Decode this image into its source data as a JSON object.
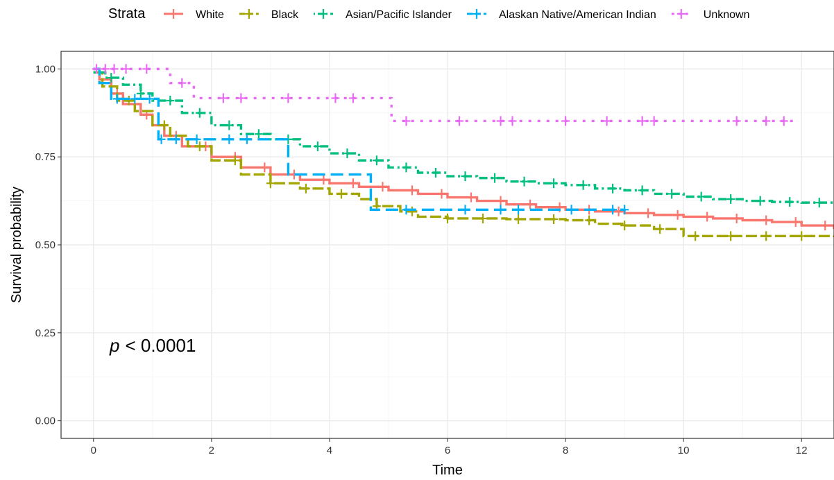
{
  "chart_data": {
    "type": "line",
    "subtype": "kaplan-meier step",
    "xlabel": "Time",
    "ylabel": "Survival probability",
    "xlim": [
      -0.55,
      12.55
    ],
    "ylim": [
      -0.05,
      1.05
    ],
    "x_ticks": [
      0,
      2,
      4,
      6,
      8,
      10,
      12
    ],
    "y_ticks": [
      0.0,
      0.25,
      0.5,
      0.75,
      1.0
    ],
    "y_tick_labels": [
      "0.00",
      "0.25",
      "0.50",
      "0.75",
      "1.00"
    ],
    "grid": true,
    "legend": {
      "title": "Strata",
      "position": "top"
    },
    "annotation": {
      "p_symbol": "p",
      "text": "< 0.0001"
    },
    "series": [
      {
        "name": "White",
        "color": "#F8766D",
        "linestyle": "solid",
        "x": [
          0,
          0.1,
          0.3,
          0.5,
          0.8,
          1.0,
          1.2,
          1.5,
          2.0,
          2.5,
          3.0,
          3.5,
          4.0,
          4.5,
          5.0,
          5.5,
          6.0,
          6.5,
          7.0,
          7.5,
          8.0,
          8.5,
          9.0,
          9.5,
          10.0,
          10.5,
          11.0,
          11.5,
          12.0,
          12.55
        ],
        "y": [
          1.0,
          0.97,
          0.93,
          0.9,
          0.87,
          0.84,
          0.81,
          0.78,
          0.75,
          0.72,
          0.7,
          0.685,
          0.675,
          0.665,
          0.655,
          0.645,
          0.635,
          0.625,
          0.615,
          0.607,
          0.6,
          0.595,
          0.59,
          0.585,
          0.58,
          0.575,
          0.57,
          0.565,
          0.555,
          0.545
        ],
        "censor_x": [
          0.4,
          0.9,
          1.4,
          1.9,
          2.4,
          2.9,
          3.4,
          3.9,
          4.4,
          4.9,
          5.4,
          5.9,
          6.4,
          6.9,
          7.4,
          7.9,
          8.4,
          8.9,
          9.4,
          9.9,
          10.4,
          10.9,
          11.4,
          11.9,
          12.4
        ]
      },
      {
        "name": "Black",
        "color": "#A3A500",
        "linestyle": "longdash",
        "x": [
          0,
          0.15,
          0.4,
          0.7,
          1.0,
          1.3,
          1.6,
          2.0,
          2.5,
          3.0,
          3.5,
          4.0,
          4.5,
          4.8,
          5.2,
          5.5,
          6.0,
          7.0,
          8.0,
          8.5,
          9.0,
          9.5,
          10.0,
          10.5,
          11.0,
          12.55
        ],
        "y": [
          0.99,
          0.95,
          0.91,
          0.88,
          0.84,
          0.81,
          0.78,
          0.74,
          0.7,
          0.675,
          0.66,
          0.645,
          0.63,
          0.61,
          0.595,
          0.58,
          0.575,
          0.573,
          0.57,
          0.56,
          0.555,
          0.545,
          0.525,
          0.525,
          0.525,
          0.522
        ],
        "censor_x": [
          0.6,
          1.2,
          1.8,
          2.4,
          3.0,
          3.6,
          4.2,
          4.8,
          5.4,
          6.0,
          6.6,
          7.2,
          7.8,
          8.4,
          9.0,
          9.6,
          10.2,
          10.8,
          11.4,
          12.0
        ]
      },
      {
        "name": "Asian/Pacific Islander",
        "color": "#00BF7D",
        "linestyle": "dotdash",
        "x": [
          0,
          0.2,
          0.5,
          0.8,
          1.0,
          1.5,
          2.0,
          2.5,
          3.0,
          3.5,
          4.0,
          4.5,
          5.0,
          5.5,
          6.0,
          6.5,
          7.0,
          7.5,
          8.0,
          8.5,
          9.0,
          9.5,
          10.0,
          10.5,
          11.0,
          11.5,
          12.0,
          12.55
        ],
        "y": [
          0.99,
          0.975,
          0.955,
          0.93,
          0.91,
          0.875,
          0.84,
          0.815,
          0.8,
          0.78,
          0.76,
          0.74,
          0.72,
          0.705,
          0.695,
          0.69,
          0.68,
          0.675,
          0.67,
          0.66,
          0.655,
          0.645,
          0.637,
          0.63,
          0.625,
          0.622,
          0.62,
          0.618
        ],
        "censor_x": [
          0.3,
          0.8,
          1.3,
          1.8,
          2.3,
          2.8,
          3.3,
          3.8,
          4.3,
          4.8,
          5.3,
          5.8,
          6.3,
          6.8,
          7.3,
          7.8,
          8.3,
          8.8,
          9.3,
          9.8,
          10.3,
          10.8,
          11.3,
          11.8,
          12.3
        ]
      },
      {
        "name": "Alaskan Native/American Indian",
        "color": "#00B0F6",
        "linestyle": "dashed",
        "x": [
          0,
          0.1,
          0.3,
          1.1,
          1.6,
          3.2,
          3.3,
          4.6,
          4.7,
          9.0
        ],
        "y": [
          1.0,
          0.96,
          0.915,
          0.8,
          0.8,
          0.8,
          0.7,
          0.7,
          0.6,
          0.6
        ],
        "censor_x": [
          0.4,
          0.7,
          0.95,
          1.15,
          1.4,
          1.75,
          2.3,
          2.6,
          5.3,
          6.3,
          6.9,
          7.2,
          8.1,
          8.8,
          9.0
        ]
      },
      {
        "name": "Unknown",
        "color": "#E76BF3",
        "linestyle": "dotted",
        "x": [
          0,
          1.3,
          1.7,
          5.0,
          5.05,
          11.9
        ],
        "y": [
          1.0,
          0.96,
          0.917,
          0.917,
          0.852,
          0.852
        ],
        "censor_x": [
          0.05,
          0.2,
          0.35,
          0.55,
          0.9,
          1.5,
          2.2,
          2.5,
          3.3,
          4.1,
          4.4,
          5.3,
          6.2,
          6.9,
          7.1,
          8.0,
          8.7,
          9.3,
          9.5,
          10.9,
          11.4,
          11.7
        ]
      }
    ]
  }
}
